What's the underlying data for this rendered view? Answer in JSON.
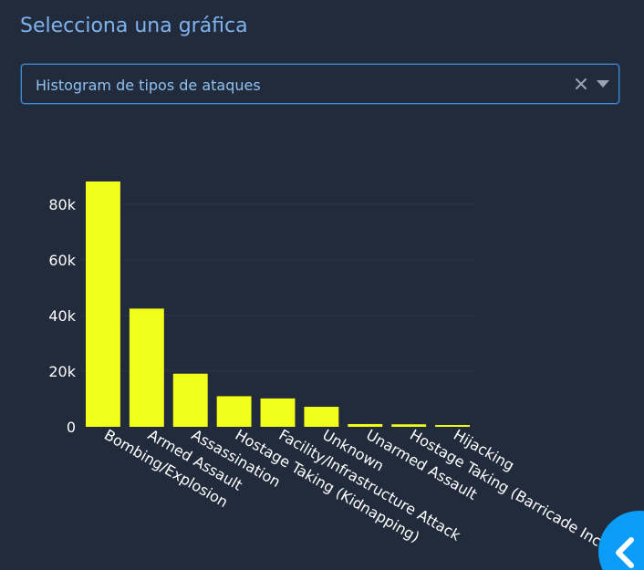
{
  "page": {
    "heading": "Selecciona una gráfica"
  },
  "dropdown": {
    "selected": "Histogram de tipos de ataques",
    "clear_icon": "close-icon",
    "arrow_icon": "caret-down-icon"
  },
  "fab": {
    "icon": "chevron-left-icon",
    "color": "#0a9cf7"
  },
  "colors": {
    "bar": "#f2ff1a",
    "grid": "#2c3548",
    "text": "#ffffff",
    "heading": "#7fb3ee"
  },
  "chart_data": {
    "type": "bar",
    "categories": [
      "Bombing/Explosion",
      "Armed Assault",
      "Assassination",
      "Hostage Taking (Kidnapping)",
      "Facility/Infrastructure Attack",
      "Unknown",
      "Unarmed Assault",
      "Hostage Taking (Barricade Incident)",
      "Hijacking"
    ],
    "values": [
      88200,
      42500,
      19100,
      11000,
      10200,
      7200,
      1000,
      900,
      650
    ],
    "yticks": [
      {
        "value": 0,
        "label": "0"
      },
      {
        "value": 20000,
        "label": "20k"
      },
      {
        "value": 40000,
        "label": "40k"
      },
      {
        "value": 60000,
        "label": "60k"
      },
      {
        "value": 80000,
        "label": "80k"
      }
    ],
    "ylim": [
      0,
      92000
    ],
    "grid": true,
    "xlabel": "",
    "ylabel": "",
    "title": ""
  }
}
